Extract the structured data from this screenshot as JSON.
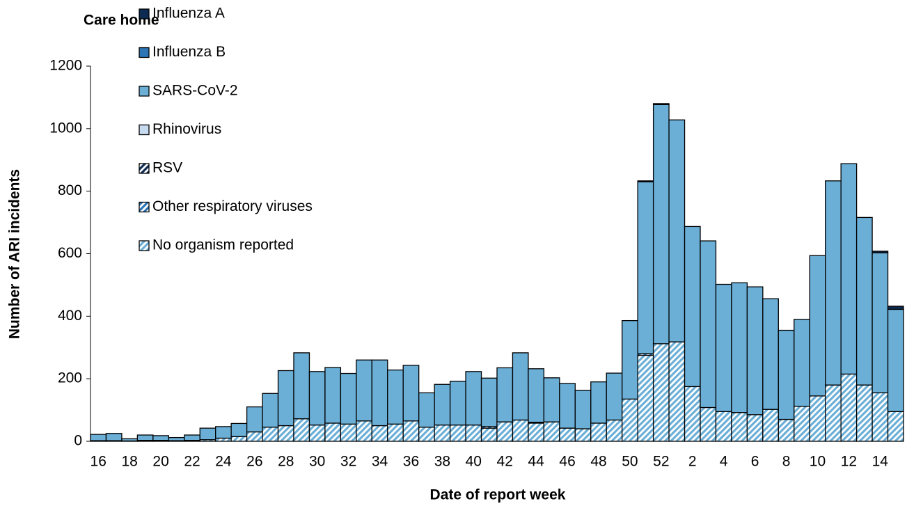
{
  "chart_data": {
    "type": "stacked_bar",
    "title": "Care home",
    "xlabel": "Date of report week",
    "ylabel": "Number of ARI incidents",
    "categories": [
      "16",
      null,
      "18",
      null,
      "20",
      null,
      "22",
      null,
      "24",
      null,
      "26",
      null,
      "28",
      null,
      "30",
      null,
      "32",
      null,
      "34",
      null,
      "36",
      null,
      "38",
      null,
      "40",
      null,
      "42",
      null,
      "44",
      null,
      "46",
      null,
      "48",
      null,
      "50",
      null,
      "52",
      null,
      "2",
      null,
      "4",
      null,
      "6",
      null,
      "8",
      null,
      "10",
      null,
      "12",
      null,
      "14",
      null
    ],
    "ylim": [
      0,
      1200
    ],
    "yticks": [
      0,
      200,
      400,
      600,
      800,
      1000,
      1200
    ],
    "grid": false,
    "legend": "upper left",
    "series": [
      {
        "name": "Influenza A",
        "color": "#0d2a52",
        "hatch": false,
        "values": [
          0,
          0,
          0,
          0,
          0,
          0,
          0,
          0,
          0,
          0,
          0,
          0,
          0,
          0,
          0,
          0,
          0,
          0,
          0,
          0,
          0,
          0,
          0,
          0,
          0,
          0,
          0,
          0,
          0,
          0,
          0,
          0,
          0,
          0,
          0,
          3,
          3,
          0,
          0,
          0,
          0,
          0,
          0,
          0,
          0,
          0,
          0,
          0,
          0,
          0,
          5,
          10
        ]
      },
      {
        "name": "Influenza B",
        "color": "#2e75b6",
        "hatch": false,
        "values": [
          0,
          0,
          0,
          0,
          0,
          0,
          0,
          0,
          0,
          0,
          0,
          0,
          0,
          0,
          0,
          0,
          0,
          0,
          0,
          0,
          0,
          0,
          0,
          0,
          0,
          0,
          0,
          0,
          0,
          0,
          0,
          0,
          0,
          0,
          0,
          0,
          0,
          0,
          0,
          0,
          0,
          0,
          0,
          0,
          0,
          0,
          0,
          0,
          0,
          0,
          0,
          0
        ]
      },
      {
        "name": "SARS-CoV-2",
        "color": "#6baed6",
        "hatch": false,
        "values": [
          20,
          23,
          7,
          17,
          15,
          10,
          17,
          37,
          37,
          42,
          80,
          108,
          176,
          211,
          171,
          178,
          162,
          195,
          210,
          173,
          178,
          110,
          130,
          140,
          171,
          155,
          173,
          215,
          171,
          141,
          143,
          123,
          132,
          150,
          251,
          550,
          765,
          710,
          512,
          533,
          407,
          415,
          409,
          354,
          285,
          278,
          449,
          653,
          673,
          536,
          448,
          327
        ]
      },
      {
        "name": "Rhinovirus",
        "color": "#c6dbef",
        "hatch": false,
        "values": [
          0,
          0,
          0,
          0,
          0,
          0,
          0,
          0,
          0,
          0,
          0,
          0,
          0,
          0,
          0,
          0,
          0,
          0,
          0,
          0,
          0,
          0,
          0,
          0,
          0,
          0,
          0,
          0,
          0,
          0,
          0,
          0,
          0,
          0,
          0,
          0,
          0,
          0,
          0,
          0,
          0,
          0,
          0,
          0,
          0,
          0,
          0,
          0,
          0,
          0,
          0,
          0
        ]
      },
      {
        "name": "RSV",
        "color": "#0d2a52",
        "hatch": true,
        "values": [
          0,
          0,
          0,
          0,
          0,
          0,
          0,
          0,
          0,
          0,
          0,
          0,
          0,
          0,
          0,
          0,
          0,
          0,
          0,
          0,
          0,
          0,
          0,
          0,
          0,
          0,
          0,
          0,
          0,
          0,
          0,
          0,
          0,
          0,
          0,
          0,
          0,
          0,
          0,
          0,
          0,
          0,
          0,
          0,
          0,
          0,
          0,
          0,
          0,
          0,
          0,
          0
        ]
      },
      {
        "name": "Other respiratory viruses",
        "color": "#2e75b6",
        "hatch": true,
        "values": [
          0,
          0,
          0,
          0,
          0,
          0,
          0,
          0,
          0,
          0,
          0,
          0,
          0,
          0,
          0,
          0,
          0,
          0,
          0,
          0,
          0,
          0,
          0,
          0,
          0,
          5,
          0,
          0,
          3,
          0,
          0,
          0,
          0,
          0,
          0,
          5,
          0,
          0,
          0,
          0,
          0,
          0,
          0,
          0,
          0,
          0,
          0,
          0,
          0,
          0,
          0,
          0
        ]
      },
      {
        "name": "No organism reported",
        "color": "#6baed6",
        "hatch": true,
        "values": [
          2,
          2,
          1,
          3,
          3,
          2,
          3,
          5,
          10,
          15,
          30,
          45,
          50,
          72,
          52,
          58,
          55,
          65,
          50,
          55,
          65,
          45,
          52,
          52,
          52,
          42,
          62,
          68,
          58,
          62,
          42,
          40,
          58,
          68,
          135,
          275,
          312,
          318,
          175,
          108,
          95,
          92,
          85,
          102,
          70,
          112,
          145,
          180,
          215,
          180,
          155,
          95
        ]
      }
    ]
  }
}
